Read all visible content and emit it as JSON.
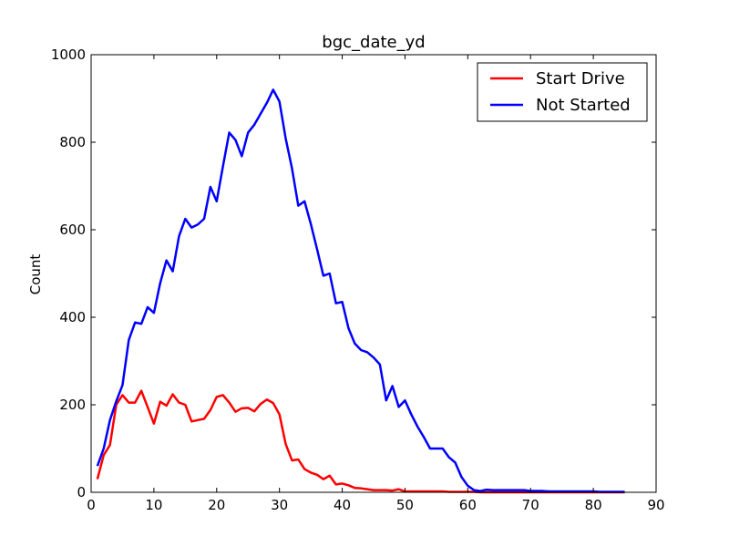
{
  "chart_data": {
    "type": "line",
    "title": "bgc_date_yd",
    "xlabel": "",
    "ylabel": "Count",
    "xlim": [
      0,
      90
    ],
    "ylim": [
      0,
      1000
    ],
    "xticks": [
      0,
      10,
      20,
      30,
      40,
      50,
      60,
      70,
      80,
      90
    ],
    "yticks": [
      0,
      200,
      400,
      600,
      800,
      1000
    ],
    "grid": false,
    "legend": {
      "placement": "top-right"
    },
    "series": [
      {
        "name": "Start Drive",
        "color": "#ff0000",
        "x": [
          1,
          2,
          3,
          4,
          5,
          6,
          7,
          8,
          9,
          10,
          11,
          12,
          13,
          14,
          15,
          16,
          17,
          18,
          19,
          20,
          21,
          22,
          23,
          24,
          25,
          26,
          27,
          28,
          29,
          30,
          31,
          32,
          33,
          34,
          35,
          36,
          37,
          38,
          39,
          40,
          41,
          42,
          43,
          44,
          45,
          46,
          47,
          48,
          49,
          50,
          51,
          52,
          53,
          54,
          55,
          56,
          57,
          58,
          59,
          60,
          61,
          62,
          63,
          64,
          65,
          66,
          67,
          68,
          69,
          70,
          71,
          72,
          73,
          74,
          75,
          76,
          77,
          78,
          79,
          80,
          81,
          82,
          83,
          84,
          85
        ],
        "values": [
          30,
          85,
          108,
          200,
          222,
          205,
          205,
          232,
          195,
          157,
          207,
          198,
          224,
          205,
          200,
          162,
          165,
          168,
          188,
          218,
          222,
          205,
          184,
          192,
          193,
          185,
          202,
          212,
          204,
          178,
          110,
          73,
          75,
          53,
          45,
          40,
          30,
          38,
          18,
          20,
          16,
          10,
          9,
          7,
          5,
          5,
          5,
          4,
          7,
          2,
          2,
          2,
          2,
          2,
          2,
          2,
          1,
          1,
          1,
          1,
          1,
          0,
          0,
          0,
          0,
          0,
          0,
          0,
          0,
          0,
          0,
          0,
          0,
          0,
          0,
          0,
          0,
          0,
          0,
          0,
          0,
          0,
          0,
          0,
          0
        ]
      },
      {
        "name": "Not Started",
        "color": "#0000ff",
        "x": [
          1,
          2,
          3,
          4,
          5,
          6,
          7,
          8,
          9,
          10,
          11,
          12,
          13,
          14,
          15,
          16,
          17,
          18,
          19,
          20,
          21,
          22,
          23,
          24,
          25,
          26,
          27,
          28,
          29,
          30,
          31,
          32,
          33,
          34,
          35,
          36,
          37,
          38,
          39,
          40,
          41,
          42,
          43,
          44,
          45,
          46,
          47,
          48,
          49,
          50,
          51,
          52,
          53,
          54,
          55,
          56,
          57,
          58,
          59,
          60,
          61,
          62,
          63,
          64,
          65,
          66,
          67,
          68,
          69,
          70,
          71,
          72,
          73,
          74,
          75,
          76,
          77,
          78,
          79,
          80,
          81,
          82,
          83,
          84,
          85
        ],
        "values": [
          60,
          100,
          165,
          208,
          245,
          348,
          388,
          385,
          423,
          410,
          478,
          530,
          505,
          585,
          625,
          605,
          612,
          625,
          698,
          665,
          745,
          822,
          805,
          768,
          822,
          840,
          865,
          890,
          920,
          893,
          808,
          740,
          655,
          665,
          613,
          555,
          495,
          500,
          432,
          435,
          375,
          340,
          325,
          320,
          308,
          292,
          210,
          243,
          195,
          210,
          178,
          150,
          126,
          100,
          100,
          100,
          80,
          68,
          35,
          15,
          5,
          3,
          6,
          5,
          5,
          5,
          5,
          5,
          5,
          3,
          3,
          3,
          2,
          2,
          2,
          2,
          2,
          2,
          2,
          2,
          1,
          1,
          1,
          1,
          1
        ]
      }
    ]
  }
}
